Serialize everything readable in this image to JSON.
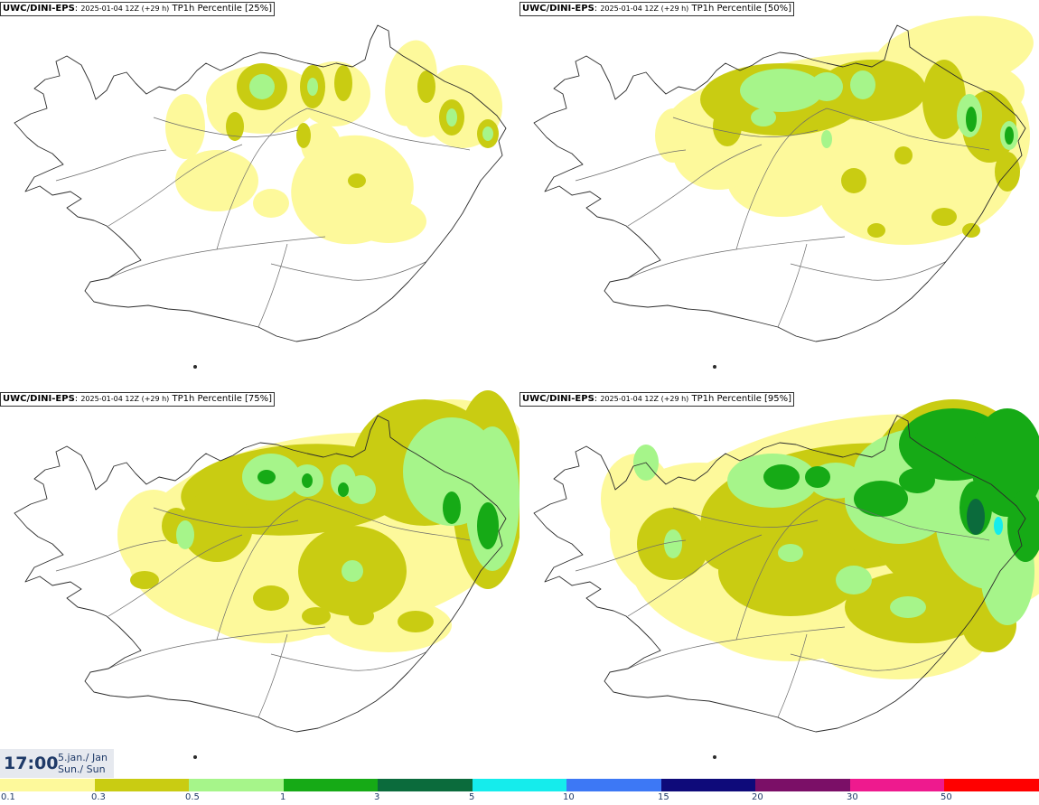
{
  "panels": [
    {
      "model": "UWC/DINI-EPS",
      "run": "2025-01-04 12Z (+29 h)",
      "product": "TP1h Percentile [25%]"
    },
    {
      "model": "UWC/DINI-EPS",
      "run": "2025-01-04 12Z (+29 h)",
      "product": "TP1h Percentile [50%]"
    },
    {
      "model": "UWC/DINI-EPS",
      "run": "2025-01-04 12Z (+29 h)",
      "product": "TP1h Percentile [75%]"
    },
    {
      "model": "UWC/DINI-EPS",
      "run": "2025-01-04 12Z (+29 h)",
      "product": "TP1h Percentile [95%]"
    }
  ],
  "valid_time": {
    "time": "17:00",
    "date": "5.jan./ Jan",
    "weekday": "Sun./ Sun"
  },
  "legend": {
    "colors": [
      "#fdf99b",
      "#c9cc12",
      "#a6f58a",
      "#16aa16",
      "#0b6b3c",
      "#15ecec",
      "#3d78f5",
      "#0e0a7a",
      "#7b0f67",
      "#ee1a8e",
      "#ff0000"
    ],
    "labels": [
      "0.1",
      "0.3",
      "0.5",
      "1",
      "3",
      "5",
      "10",
      "15",
      "20",
      "30",
      "50"
    ]
  }
}
